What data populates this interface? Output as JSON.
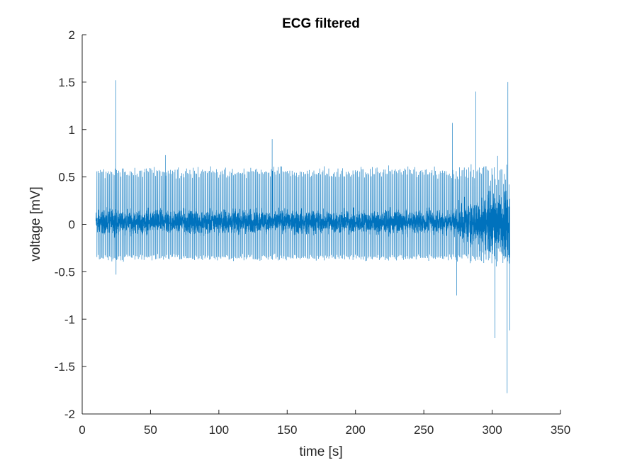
{
  "chart_data": {
    "type": "line",
    "title": "ECG filtered",
    "xlabel": "time [s]",
    "ylabel": "voltage [mV]",
    "xlim": [
      0,
      350
    ],
    "ylim": [
      -2,
      2
    ],
    "xticks": [
      "0",
      "50",
      "100",
      "150",
      "200",
      "250",
      "300",
      "350"
    ],
    "yticks": [
      "2",
      "1.5",
      "1",
      "0.5",
      "0",
      "-0.5",
      "-1",
      "-1.5",
      "-2"
    ],
    "grid": false,
    "line_color": "#0072BD",
    "series": [
      {
        "x_start": 10,
        "x_end": 313,
        "baseline_range": [
          -0.15,
          0.2
        ],
        "r_peak_typical": 0.55,
        "s_trough_typical": -0.35,
        "extremes": [
          {
            "x": 24.5,
            "y": 1.52
          },
          {
            "x": 24.8,
            "y": -0.53
          },
          {
            "x": 61,
            "y": 0.73
          },
          {
            "x": 139,
            "y": 0.9
          },
          {
            "x": 271,
            "y": 1.07
          },
          {
            "x": 274,
            "y": -0.75
          },
          {
            "x": 288,
            "y": 1.4
          },
          {
            "x": 302,
            "y": -1.2
          },
          {
            "x": 311.5,
            "y": 1.5
          },
          {
            "x": 311,
            "y": -1.78
          },
          {
            "x": 313,
            "y": -1.12
          }
        ]
      }
    ]
  }
}
